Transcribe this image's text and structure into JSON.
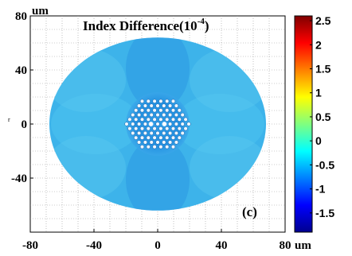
{
  "chart_data": {
    "type": "heatmap",
    "title": "Index Difference(10",
    "title_exponent": "-4",
    "title_suffix": ")",
    "x_unit": "um",
    "y_unit": "um",
    "ylabel": "r",
    "panel_label": "(c)",
    "xlim": [
      -80,
      80
    ],
    "ylim": [
      -80,
      80
    ],
    "x_ticks": [
      -80,
      -40,
      0,
      40,
      80
    ],
    "y_ticks": [
      80,
      40,
      0,
      -40
    ],
    "x_tick_labels": [
      "-80",
      "-40",
      "0",
      "40",
      "80"
    ],
    "y_tick_labels": [
      "80",
      "40",
      "0",
      "-40"
    ],
    "grid": true,
    "colorbar": {
      "range": [
        -1.9,
        2.6
      ],
      "ticks": [
        2.5,
        2,
        1.5,
        1,
        0.5,
        0,
        -0.5,
        -1,
        -1.5
      ],
      "tick_labels": [
        "2.5",
        "2",
        "1.5",
        "1",
        "0.5",
        "0",
        "-0.5",
        "-1",
        "-1.5"
      ],
      "colormap": "jet"
    },
    "cladding": {
      "center": [
        0,
        0
      ],
      "radius_x": 68,
      "radius_y": 64,
      "base_value": 0.1
    },
    "core": {
      "center": [
        0,
        0
      ],
      "radius": 20,
      "value": -0.25
    },
    "air_holes": {
      "pitch": 3.9,
      "ring_radius_limit": 19.5
    },
    "cores": [
      {
        "x": -4.2,
        "y": 0
      },
      {
        "x": 4.2,
        "y": 0
      }
    ]
  }
}
